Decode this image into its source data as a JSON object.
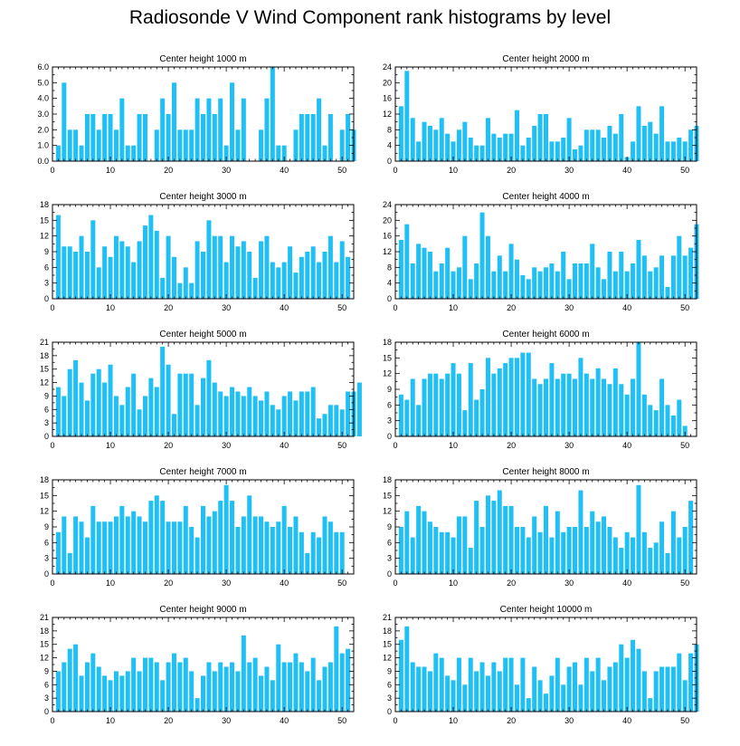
{
  "title": "Radiosonde V Wind Component rank histograms by level",
  "colors": {
    "bar": "#1ec0f5",
    "frame": "#000000",
    "background": "#ffffff"
  },
  "chart_data": [
    {
      "type": "bar",
      "title": "Center height 1000 m",
      "xlabel": "",
      "ylabel": "",
      "xlim": [
        0,
        52
      ],
      "xticks": [
        0,
        10,
        20,
        30,
        40,
        50
      ],
      "ylim": [
        0,
        6
      ],
      "yticks": [
        "0.0",
        "1.0",
        "2.0",
        "3.0",
        "4.0",
        "5.0",
        "6.0"
      ],
      "values": [
        1,
        5,
        2,
        2,
        1,
        3,
        3,
        2,
        3,
        3,
        2,
        4,
        1,
        1,
        3,
        3,
        0,
        2,
        4,
        3,
        5,
        2,
        2,
        2,
        4,
        3,
        4,
        3,
        4,
        1,
        5,
        2,
        4,
        0,
        0,
        2,
        4,
        6,
        1,
        1,
        0,
        2,
        3,
        3,
        3,
        4,
        1,
        3,
        0,
        2,
        3,
        2
      ]
    },
    {
      "type": "bar",
      "title": "Center height 2000 m",
      "xlabel": "",
      "ylabel": "",
      "xlim": [
        0,
        52
      ],
      "xticks": [
        0,
        10,
        20,
        30,
        40,
        50
      ],
      "ylim": [
        0,
        24
      ],
      "yticks": [
        "0",
        "4",
        "8",
        "12",
        "16",
        "20",
        "24"
      ],
      "values": [
        14,
        23,
        11,
        5,
        10,
        9,
        8,
        11,
        7,
        5,
        8,
        10,
        6,
        4,
        4,
        11,
        7,
        6,
        7,
        7,
        13,
        4,
        6,
        9,
        12,
        12,
        5,
        5,
        6,
        11,
        3,
        4,
        8,
        8,
        8,
        6,
        9,
        7,
        12,
        1,
        5,
        14,
        9,
        10,
        7,
        14,
        5,
        5,
        6,
        5,
        8,
        9
      ]
    },
    {
      "type": "bar",
      "title": "Center height 3000 m",
      "xlabel": "",
      "ylabel": "",
      "xlim": [
        0,
        52
      ],
      "xticks": [
        0,
        10,
        20,
        30,
        40,
        50
      ],
      "ylim": [
        0,
        18
      ],
      "yticks": [
        "0",
        "3",
        "6",
        "9",
        "12",
        "15",
        "18"
      ],
      "values": [
        16,
        10,
        10,
        9,
        12,
        9,
        15,
        6,
        10,
        8,
        12,
        11,
        10,
        7,
        11,
        14,
        16,
        13,
        4,
        12,
        8,
        3,
        6,
        3,
        11,
        9,
        15,
        12,
        12,
        7,
        12,
        10,
        11,
        9,
        4,
        11,
        12,
        7,
        6,
        7,
        10,
        5,
        8,
        9,
        10,
        7,
        9,
        12,
        7,
        11,
        8
      ]
    },
    {
      "type": "bar",
      "title": "Center height 4000 m",
      "xlabel": "",
      "ylabel": "",
      "xlim": [
        0,
        52
      ],
      "xticks": [
        0,
        10,
        20,
        30,
        40,
        50
      ],
      "ylim": [
        0,
        24
      ],
      "yticks": [
        "0",
        "4",
        "8",
        "12",
        "16",
        "20",
        "24"
      ],
      "values": [
        15,
        19,
        9,
        14,
        13,
        12,
        7,
        9,
        13,
        7,
        8,
        16,
        5,
        9,
        22,
        16,
        7,
        11,
        7,
        14,
        10,
        6,
        5,
        8,
        7,
        8,
        9,
        7,
        12,
        5,
        9,
        9,
        9,
        14,
        8,
        5,
        12,
        7,
        12,
        7,
        9,
        15,
        11,
        7,
        8,
        11,
        3,
        11,
        16,
        11,
        13,
        19
      ]
    },
    {
      "type": "bar",
      "title": "Center height 5000 m",
      "xlabel": "",
      "ylabel": "",
      "xlim": [
        0,
        52
      ],
      "xticks": [
        0,
        10,
        20,
        30,
        40,
        50
      ],
      "ylim": [
        0,
        21
      ],
      "yticks": [
        "0",
        "3",
        "6",
        "9",
        "12",
        "15",
        "18",
        "21"
      ],
      "values": [
        11,
        9,
        15,
        17,
        12,
        8,
        14,
        15,
        12,
        16,
        9,
        7,
        11,
        14,
        6,
        9,
        13,
        11,
        20,
        16,
        5,
        14,
        14,
        14,
        7,
        13,
        17,
        12,
        10,
        9,
        11,
        10,
        9,
        11,
        9,
        8,
        10,
        7,
        6,
        9,
        10,
        8,
        10,
        10,
        11,
        4,
        5,
        7,
        7,
        6,
        10,
        10,
        12
      ]
    },
    {
      "type": "bar",
      "title": "Center height 6000 m",
      "xlabel": "",
      "ylabel": "",
      "xlim": [
        0,
        52
      ],
      "xticks": [
        0,
        10,
        20,
        30,
        40,
        50
      ],
      "ylim": [
        0,
        18
      ],
      "yticks": [
        "0",
        "3",
        "6",
        "9",
        "12",
        "15",
        "18"
      ],
      "values": [
        8,
        7,
        11,
        6,
        11,
        12,
        12,
        11,
        12,
        14,
        12,
        5,
        14,
        7,
        9,
        15,
        12,
        13,
        14,
        15,
        15,
        16,
        16,
        11,
        10,
        11,
        14,
        11,
        12,
        12,
        11,
        15,
        12,
        11,
        13,
        11,
        10,
        13,
        10,
        8,
        11,
        18,
        8,
        6,
        5,
        11,
        6,
        4,
        7,
        2
      ]
    },
    {
      "type": "bar",
      "title": "Center height 7000 m",
      "xlabel": "",
      "ylabel": "",
      "xlim": [
        0,
        52
      ],
      "xticks": [
        0,
        10,
        20,
        30,
        40,
        50
      ],
      "ylim": [
        0,
        18
      ],
      "yticks": [
        "0",
        "3",
        "6",
        "9",
        "12",
        "15",
        "18"
      ],
      "values": [
        8,
        11,
        4,
        11,
        10,
        7,
        13,
        10,
        10,
        10,
        11,
        13,
        11,
        12,
        11,
        10,
        14,
        15,
        14,
        10,
        10,
        10,
        13,
        9,
        7,
        13,
        11,
        12,
        14,
        17,
        14,
        9,
        11,
        15,
        11,
        11,
        10,
        9,
        10,
        13,
        9,
        11,
        8,
        4,
        8,
        7,
        11,
        10,
        8,
        8
      ]
    },
    {
      "type": "bar",
      "title": "Center height 8000 m",
      "xlabel": "",
      "ylabel": "",
      "xlim": [
        0,
        52
      ],
      "xticks": [
        0,
        10,
        20,
        30,
        40,
        50
      ],
      "ylim": [
        0,
        18
      ],
      "yticks": [
        "0",
        "3",
        "6",
        "9",
        "12",
        "15",
        "18"
      ],
      "values": [
        9,
        12,
        7,
        13,
        12,
        10,
        9,
        8,
        8,
        7,
        11,
        11,
        5,
        14,
        9,
        15,
        14,
        16,
        13,
        13,
        9,
        9,
        7,
        11,
        8,
        13,
        7,
        12,
        8,
        9,
        9,
        16,
        9,
        12,
        10,
        11,
        9,
        7,
        5,
        8,
        7,
        17,
        8,
        5,
        6,
        10,
        4,
        12,
        7,
        9,
        14
      ]
    },
    {
      "type": "bar",
      "title": "Center height 9000 m",
      "xlabel": "",
      "ylabel": "",
      "xlim": [
        0,
        52
      ],
      "xticks": [
        0,
        10,
        20,
        30,
        40,
        50
      ],
      "ylim": [
        0,
        21
      ],
      "yticks": [
        "0",
        "3",
        "6",
        "9",
        "12",
        "15",
        "18",
        "21"
      ],
      "values": [
        9,
        11,
        14,
        15,
        8,
        11,
        13,
        10,
        8,
        7,
        9,
        8,
        9,
        12,
        9,
        12,
        12,
        11,
        7,
        11,
        13,
        11,
        12,
        9,
        3,
        8,
        11,
        9,
        11,
        10,
        11,
        9,
        17,
        11,
        12,
        8,
        10,
        7,
        15,
        11,
        11,
        13,
        11,
        9,
        12,
        7,
        10,
        11,
        19,
        13,
        14
      ]
    },
    {
      "type": "bar",
      "title": "Center height 10000 m",
      "xlabel": "",
      "ylabel": "",
      "xlim": [
        0,
        52
      ],
      "xticks": [
        0,
        10,
        20,
        30,
        40,
        50
      ],
      "ylim": [
        0,
        21
      ],
      "yticks": [
        "0",
        "3",
        "6",
        "9",
        "12",
        "15",
        "18",
        "21"
      ],
      "values": [
        16,
        19,
        11,
        10,
        10,
        9,
        13,
        12,
        8,
        7,
        12,
        6,
        12,
        9,
        11,
        8,
        11,
        9,
        12,
        12,
        6,
        12,
        3,
        10,
        7,
        4,
        8,
        12,
        6,
        10,
        11,
        6,
        12,
        9,
        12,
        7,
        10,
        11,
        15,
        12,
        16,
        14,
        9,
        3,
        9,
        10,
        10,
        10,
        13,
        7,
        13,
        15
      ]
    }
  ]
}
